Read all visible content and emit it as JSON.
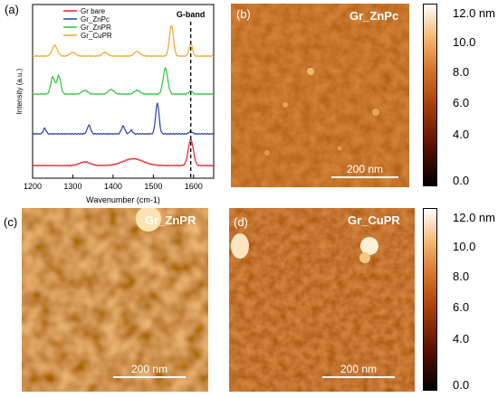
{
  "panels": {
    "a": {
      "letter": "(a)"
    },
    "b": {
      "letter": "(b)",
      "title": "Gr_ZnPc",
      "scalebar": "200 nm"
    },
    "c": {
      "letter": "(c)",
      "title": "Gr_ZnPR",
      "scalebar": "200 nm"
    },
    "d": {
      "letter": "(d)",
      "title": "Gr_CuPR",
      "scalebar": "200 nm"
    }
  },
  "colorbar": {
    "ticks": [
      "12.0 nm",
      "10.0",
      "8.0",
      "6.0",
      "4.0",
      "0.0"
    ],
    "colors": [
      "#000000",
      "#5a0f00",
      "#a8400a",
      "#d9772c",
      "#f3b874",
      "#ffffff"
    ]
  },
  "chart_data": {
    "type": "line",
    "xlabel": "Wavenumber (cm-1)",
    "ylabel": "Intensity (a.u.)",
    "xlim": [
      1200,
      1650
    ],
    "xticks": [
      1200,
      1300,
      1400,
      1500,
      1600
    ],
    "annotation": {
      "text": "G-band",
      "x": 1593
    },
    "legend_position": "top-left",
    "series": [
      {
        "name": "Gr bare",
        "color": "#e8222b",
        "offset": 0,
        "peaks": [
          [
            1330,
            0.12,
            18
          ],
          [
            1450,
            0.22,
            35
          ],
          [
            1593,
            0.85,
            9
          ]
        ]
      },
      {
        "name": "Gr_ZnPc",
        "color": "#2b3ea8",
        "offset": 1,
        "peaks": [
          [
            1230,
            0.18,
            5
          ],
          [
            1340,
            0.28,
            6
          ],
          [
            1425,
            0.26,
            6
          ],
          [
            1445,
            0.12,
            5
          ],
          [
            1510,
            1.0,
            6
          ],
          [
            1593,
            0.08,
            6
          ]
        ]
      },
      {
        "name": "Gr_ZnPR",
        "color": "#2fc43a",
        "offset": 2,
        "peaks": [
          [
            1250,
            0.55,
            7
          ],
          [
            1265,
            0.6,
            7
          ],
          [
            1330,
            0.12,
            10
          ],
          [
            1395,
            0.15,
            10
          ],
          [
            1460,
            0.12,
            10
          ],
          [
            1530,
            0.85,
            8
          ],
          [
            1593,
            0.1,
            6
          ]
        ]
      },
      {
        "name": "Gr_CuPR",
        "color": "#f5a52c",
        "offset": 3,
        "peaks": [
          [
            1255,
            0.35,
            9
          ],
          [
            1300,
            0.12,
            10
          ],
          [
            1380,
            0.12,
            10
          ],
          [
            1460,
            0.15,
            10
          ],
          [
            1545,
            1.0,
            7
          ],
          [
            1593,
            0.4,
            6
          ]
        ]
      }
    ]
  }
}
